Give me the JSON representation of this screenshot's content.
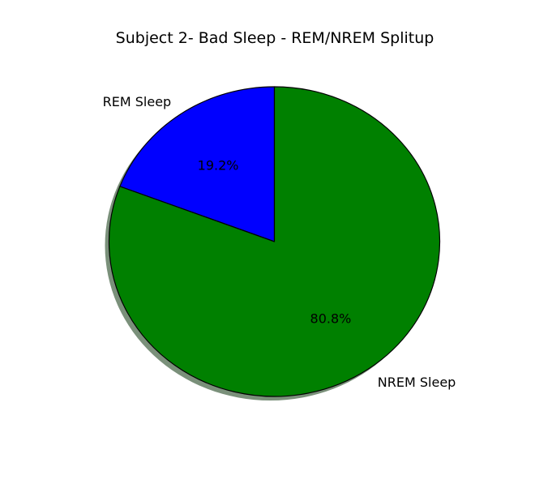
{
  "chart_data": {
    "type": "pie",
    "title": "Subject 2- Bad Sleep - REM/NREM Splitup",
    "categories": [
      "REM Sleep",
      "NREM Sleep"
    ],
    "values": [
      19.2,
      80.8
    ],
    "value_labels": [
      "19.2%",
      "80.8%"
    ],
    "colors": [
      "#0000ff",
      "#008000"
    ],
    "start_angle": 90,
    "direction": "counterclockwise",
    "shadow": true,
    "edge_color": "#000000"
  }
}
